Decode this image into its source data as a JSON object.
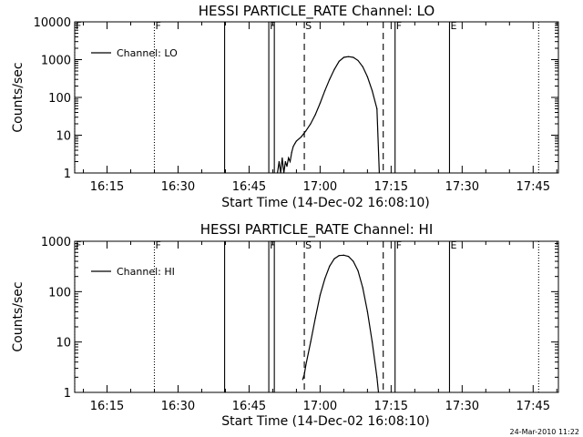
{
  "footer": {
    "timestamp": "24-Mar-2010 11:22"
  },
  "chart_data": [
    {
      "type": "line",
      "title": "HESSI PARTICLE_RATE Channel: LO",
      "xlabel": "Start Time (14-Dec-02 16:08:10)",
      "ylabel": "Counts/sec",
      "y_scale": "log",
      "xlim": [
        "16:08:10",
        "17:50:20"
      ],
      "ylim": [
        1,
        10000
      ],
      "xtick_labels": [
        "16:15",
        "16:30",
        "16:45",
        "17:00",
        "17:15",
        "17:30",
        "17:45"
      ],
      "ytick_labels": [
        "1",
        "10",
        "100",
        "1000",
        "10000"
      ],
      "legend": {
        "position": "top-left"
      },
      "series": [
        {
          "name": "Channel: LO",
          "x": [
            "16:51:00",
            "16:51:20",
            "16:51:40",
            "16:52:00",
            "16:52:20",
            "16:52:40",
            "16:53:00",
            "16:53:20",
            "16:53:40",
            "16:54:00",
            "16:54:20",
            "16:54:40",
            "16:55:00",
            "16:56:00",
            "16:57:00",
            "16:58:00",
            "16:59:00",
            "17:00:00",
            "17:01:00",
            "17:02:00",
            "17:03:00",
            "17:04:00",
            "17:05:00",
            "17:06:00",
            "17:07:00",
            "17:08:00",
            "17:09:00",
            "17:10:00",
            "17:11:00",
            "17:12:00",
            "17:12:30"
          ],
          "y": [
            1,
            2,
            1,
            2.5,
            1,
            2,
            1.5,
            2.5,
            2,
            3.5,
            5,
            6,
            7,
            9,
            13,
            20,
            35,
            70,
            150,
            300,
            550,
            900,
            1150,
            1200,
            1150,
            950,
            650,
            350,
            150,
            50,
            1
          ]
        }
      ],
      "vertical_markers": [
        {
          "time": "16:08:10",
          "style": "dotted",
          "label": "F"
        },
        {
          "time": "16:25:00",
          "style": "dotted",
          "label": "F"
        },
        {
          "time": "16:39:50",
          "style": "solid",
          "label": ""
        },
        {
          "time": "16:49:10",
          "style": "solid",
          "label": "F"
        },
        {
          "time": "16:50:20",
          "style": "solid",
          "label": ""
        },
        {
          "time": "16:56:40",
          "style": "dashed",
          "label": "S"
        },
        {
          "time": "17:13:20",
          "style": "dashed",
          "label": ""
        },
        {
          "time": "17:15:50",
          "style": "solid",
          "label": "F"
        },
        {
          "time": "17:27:20",
          "style": "solid",
          "label": "E"
        },
        {
          "time": "17:46:10",
          "style": "dotted",
          "label": ""
        }
      ]
    },
    {
      "type": "line",
      "title": "HESSI PARTICLE_RATE Channel: HI",
      "xlabel": "Start Time (14-Dec-02 16:08:10)",
      "ylabel": "Counts/sec",
      "y_scale": "log",
      "xlim": [
        "16:08:10",
        "17:50:20"
      ],
      "ylim": [
        1,
        1000
      ],
      "xtick_labels": [
        "16:15",
        "16:30",
        "16:45",
        "17:00",
        "17:15",
        "17:30",
        "17:45"
      ],
      "ytick_labels": [
        "1",
        "10",
        "100",
        "1000"
      ],
      "legend": {
        "position": "top-left"
      },
      "series": [
        {
          "name": "Channel: HI",
          "x": [
            "16:56:20",
            "16:56:40",
            "16:57:00",
            "16:58:00",
            "16:59:00",
            "17:00:00",
            "17:01:00",
            "17:02:00",
            "17:03:00",
            "17:04:00",
            "17:05:00",
            "17:06:00",
            "17:07:00",
            "17:08:00",
            "17:09:00",
            "17:10:00",
            "17:11:00",
            "17:12:00",
            "17:12:20"
          ],
          "y": [
            1.8,
            2.3,
            3.5,
            10,
            30,
            85,
            180,
            320,
            450,
            520,
            530,
            500,
            400,
            260,
            120,
            40,
            10,
            2,
            1
          ]
        }
      ],
      "vertical_markers": [
        {
          "time": "16:08:10",
          "style": "dotted",
          "label": "F"
        },
        {
          "time": "16:25:00",
          "style": "dotted",
          "label": "F"
        },
        {
          "time": "16:39:50",
          "style": "solid",
          "label": ""
        },
        {
          "time": "16:49:10",
          "style": "solid",
          "label": "F"
        },
        {
          "time": "16:50:20",
          "style": "solid",
          "label": ""
        },
        {
          "time": "16:56:40",
          "style": "dashed",
          "label": "S"
        },
        {
          "time": "17:13:20",
          "style": "dashed",
          "label": ""
        },
        {
          "time": "17:15:50",
          "style": "solid",
          "label": "F"
        },
        {
          "time": "17:27:20",
          "style": "solid",
          "label": "E"
        },
        {
          "time": "17:46:10",
          "style": "dotted",
          "label": ""
        }
      ]
    }
  ]
}
